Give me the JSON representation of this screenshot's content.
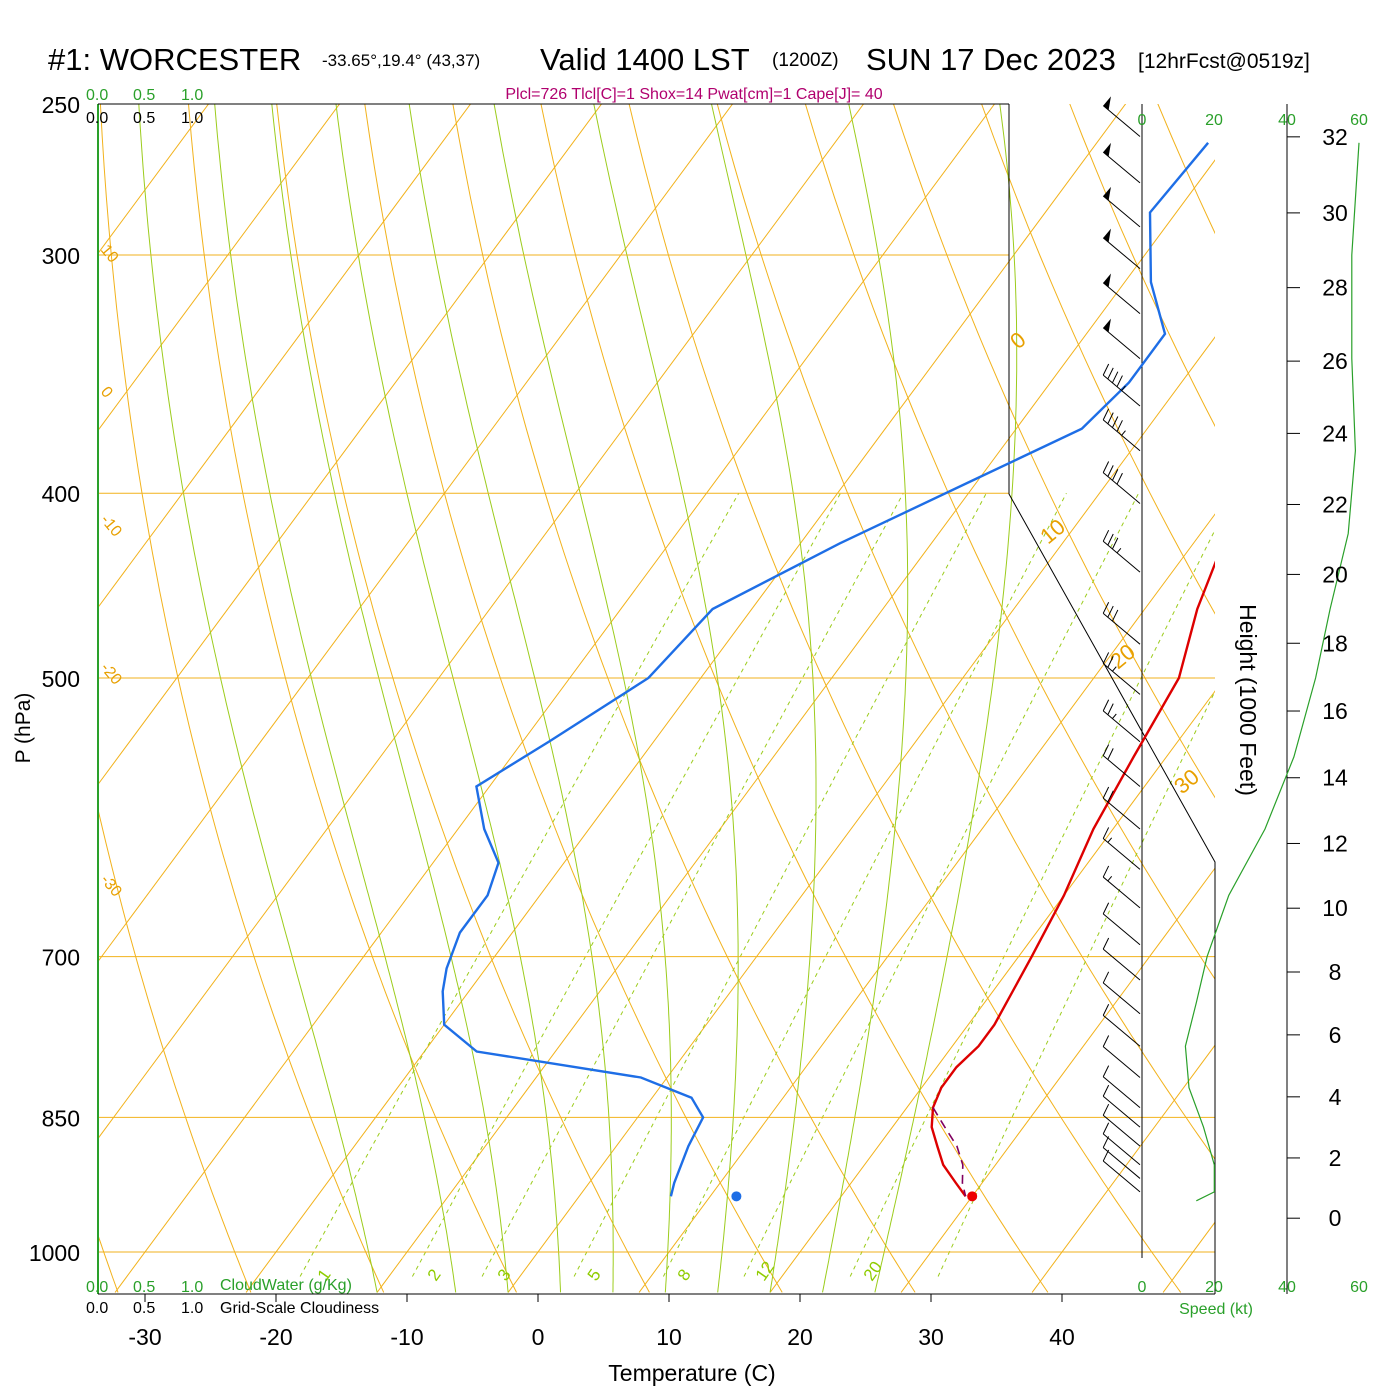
{
  "header": {
    "station": "#1: WORCESTER",
    "coords": "-33.65°,19.4° (43,37)",
    "valid": "Valid 1400 LST",
    "zulu": "(1200Z)",
    "date": "SUN 17 Dec 2023",
    "forecast": "[12hrFcst@0519z]",
    "params": "Plcl=726 Tlcl[C]=1 Shox=14 Pwat[cm]=1 Cape[J]= 40"
  },
  "axes": {
    "x_title": "Temperature (C)",
    "y_title": "P (hPa)",
    "height_title": "Height (1000 Feet)",
    "speed_title": "Speed (kt)",
    "cloudwater_title": "CloudWater (g/Kg)",
    "cloudiness_title": "Grid-Scale Cloudiness"
  },
  "scales": {
    "cloudwater_ticks": [
      "0.0",
      "0.5",
      "1.0"
    ],
    "cloudiness_ticks": [
      "0.0",
      "0.5",
      "1.0"
    ],
    "speed_ticks": [
      "0",
      "20",
      "40",
      "60"
    ]
  },
  "chart_data": {
    "type": "line",
    "x": {
      "label": "Temperature (C)",
      "ticks": [
        -30,
        -20,
        -10,
        0,
        10,
        20,
        30,
        40
      ],
      "range": [
        -38,
        45
      ]
    },
    "y": {
      "label": "P (hPa)",
      "ticks": [
        250,
        300,
        400,
        500,
        700,
        850,
        1000
      ],
      "range": [
        1030,
        250
      ],
      "scale": "log"
    },
    "height_ticks": [
      0,
      2,
      4,
      6,
      8,
      10,
      12,
      14,
      16,
      18,
      20,
      22,
      24,
      26,
      28,
      30,
      32
    ],
    "isotherm_labels": [
      "10",
      "0",
      "-10",
      "-20",
      "-30"
    ],
    "theta_labels": [
      "0",
      "10",
      "20",
      "30"
    ],
    "mixing_ratio_labels": [
      "1",
      "2",
      "3",
      "5",
      "8",
      "12",
      "20"
    ],
    "series": [
      {
        "name": "temperature",
        "color": "#dd0000",
        "points": [
          [
            1.7,
            262
          ],
          [
            3,
            280
          ],
          [
            5,
            300
          ],
          [
            8,
            340
          ],
          [
            10,
            380
          ],
          [
            12,
            420
          ],
          [
            14,
            460
          ],
          [
            16.5,
            500
          ],
          [
            17.5,
            550
          ],
          [
            18.5,
            600
          ],
          [
            20,
            650
          ],
          [
            21,
            700
          ],
          [
            22,
            760
          ],
          [
            22,
            780
          ],
          [
            21.5,
            800
          ],
          [
            21.5,
            820
          ],
          [
            22,
            840
          ],
          [
            23,
            860
          ],
          [
            24.5,
            880
          ],
          [
            26,
            900
          ],
          [
            28,
            920
          ],
          [
            29.5,
            935
          ]
        ]
      },
      {
        "name": "dewpoint",
        "color": "#1e6ee6",
        "points": [
          [
            -11.5,
            262
          ],
          [
            -12,
            285
          ],
          [
            -8,
            310
          ],
          [
            -4,
            330
          ],
          [
            -4,
            350
          ],
          [
            -5,
            370
          ],
          [
            -10,
            392
          ],
          [
            -17,
            425
          ],
          [
            -23,
            460
          ],
          [
            -24,
            500
          ],
          [
            -28,
            540
          ],
          [
            -31,
            570
          ],
          [
            -28,
            600
          ],
          [
            -25,
            625
          ],
          [
            -24,
            650
          ],
          [
            -24,
            680
          ],
          [
            -23,
            710
          ],
          [
            -22,
            730
          ],
          [
            -20,
            760
          ],
          [
            -16,
            785
          ],
          [
            -2,
            810
          ],
          [
            3,
            830
          ],
          [
            5,
            850
          ],
          [
            5.5,
            880
          ],
          [
            6,
            900
          ],
          [
            6.5,
            920
          ],
          [
            7,
            935
          ]
        ]
      },
      {
        "name": "parcel",
        "color": "#800060",
        "points": [
          [
            22,
            840
          ],
          [
            24,
            860
          ],
          [
            26,
            880
          ],
          [
            27.5,
            900
          ],
          [
            28.5,
            920
          ],
          [
            29.5,
            935
          ]
        ]
      }
    ],
    "surface_temp_marker": {
      "t": 30,
      "p": 935,
      "color": "#ee0000"
    },
    "surface_dew_marker": {
      "t": 12,
      "p": 935,
      "color": "#1e6ee6"
    },
    "wind_barbs": [
      {
        "p": 260,
        "speed": 50
      },
      {
        "p": 275,
        "speed": 50
      },
      {
        "p": 290,
        "speed": 50
      },
      {
        "p": 305,
        "speed": 50
      },
      {
        "p": 322,
        "speed": 50
      },
      {
        "p": 340,
        "speed": 50
      },
      {
        "p": 360,
        "speed": 45
      },
      {
        "p": 380,
        "speed": 45
      },
      {
        "p": 405,
        "speed": 40
      },
      {
        "p": 440,
        "speed": 35
      },
      {
        "p": 480,
        "speed": 30
      },
      {
        "p": 510,
        "speed": 25
      },
      {
        "p": 540,
        "speed": 25
      },
      {
        "p": 570,
        "speed": 20
      },
      {
        "p": 600,
        "speed": 20
      },
      {
        "p": 630,
        "speed": 15
      },
      {
        "p": 660,
        "speed": 15
      },
      {
        "p": 690,
        "speed": 10
      },
      {
        "p": 720,
        "speed": 10
      },
      {
        "p": 750,
        "speed": 10
      },
      {
        "p": 780,
        "speed": 10
      },
      {
        "p": 810,
        "speed": 10
      },
      {
        "p": 840,
        "speed": 10
      },
      {
        "p": 860,
        "speed": 10
      },
      {
        "p": 880,
        "speed": 10
      },
      {
        "p": 900,
        "speed": 10
      },
      {
        "p": 915,
        "speed": 10
      },
      {
        "p": 930,
        "speed": 10
      }
    ],
    "wind_speed_profile": {
      "color": "#2aa02a",
      "points": [
        [
          60,
          262
        ],
        [
          58,
          300
        ],
        [
          58,
          340
        ],
        [
          59,
          380
        ],
        [
          57,
          420
        ],
        [
          52,
          460
        ],
        [
          48,
          500
        ],
        [
          42,
          550
        ],
        [
          34,
          600
        ],
        [
          24,
          650
        ],
        [
          18,
          700
        ],
        [
          15,
          740
        ],
        [
          12,
          780
        ],
        [
          13,
          820
        ],
        [
          17,
          860
        ],
        [
          20,
          900
        ],
        [
          20,
          930
        ],
        [
          15,
          940
        ]
      ]
    }
  }
}
